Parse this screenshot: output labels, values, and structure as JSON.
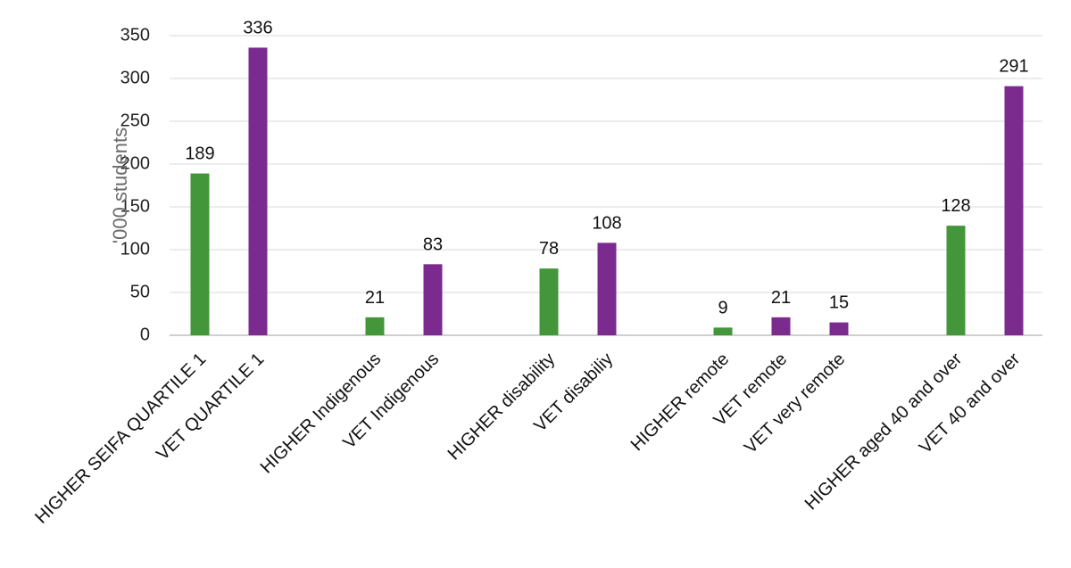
{
  "chart_data": {
    "type": "bar",
    "ylabel": "'000 students",
    "ylim": [
      0,
      350
    ],
    "yticks": [
      0,
      50,
      100,
      150,
      200,
      250,
      300,
      350
    ],
    "grid": true,
    "categories": [
      "HIGHER  SEIFA QUARTILE 1",
      "VET QUARTILE 1",
      "HIGHER Indigenous",
      "VET  Indigenous",
      "HIGHER  disability",
      "VET disabiliy",
      "HIGHER  remote",
      "VET remote",
      "VET very remote",
      "HIGHER aged 40 and over",
      "VET 40 and over"
    ],
    "values": [
      189,
      336,
      21,
      83,
      78,
      108,
      9,
      21,
      15,
      128,
      291
    ],
    "data_labels": [
      "189",
      "336",
      "21",
      "83",
      "78",
      "108",
      "9",
      "21",
      "15",
      "128",
      "291"
    ],
    "bar_colors": [
      "#43963a",
      "#7b2a8e",
      "#43963a",
      "#7b2a8e",
      "#43963a",
      "#7b2a8e",
      "#43963a",
      "#7b2a8e",
      "#7b2a8e",
      "#43963a",
      "#7b2a8e"
    ]
  },
  "colors": {
    "higher": "#43963a",
    "vet": "#7b2a8e",
    "grid": "#d9d9d9",
    "axis": "#bfbfbf"
  }
}
